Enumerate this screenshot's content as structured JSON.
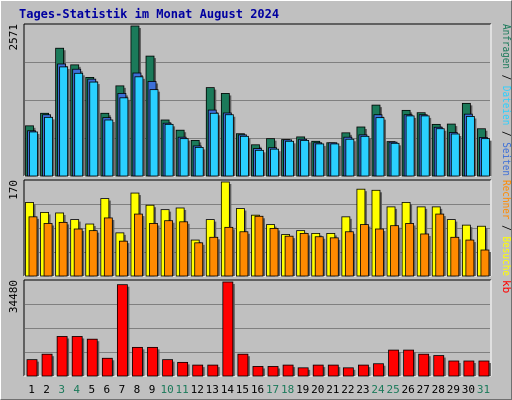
{
  "title": "Tages-Statistik im Monat August 2024",
  "colors": {
    "background": "#c0c0c0",
    "title": "#0000a0",
    "anfragen": "#1b7a5a",
    "seiten": "#3d6fd8",
    "dateien": "#2ad0ff",
    "besuche": "#ffff00",
    "rechner": "#ff8a00",
    "kb": "#ff0000",
    "weekend_label": "#1b7a5a",
    "weekday_label": "#000000"
  },
  "chart_data": [
    {
      "type": "bar",
      "panel": "top",
      "ylabel_max": "2571",
      "ylim": [
        0,
        2571
      ],
      "categories": [
        "1",
        "2",
        "3",
        "4",
        "5",
        "6",
        "7",
        "8",
        "9",
        "10",
        "11",
        "12",
        "13",
        "14",
        "15",
        "16",
        "17",
        "18",
        "19",
        "20",
        "21",
        "22",
        "23",
        "24",
        "25",
        "26",
        "27",
        "28",
        "29",
        "30",
        "31"
      ],
      "series": [
        {
          "name": "Anfragen",
          "values": [
            860,
            1075,
            2190,
            1905,
            1690,
            1075,
            1545,
            2571,
            2055,
            960,
            785,
            610,
            1515,
            1415,
            725,
            535,
            640,
            625,
            670,
            595,
            570,
            740,
            840,
            1215,
            590,
            1125,
            1085,
            885,
            890,
            1245,
            810
          ]
        },
        {
          "name": "Seiten",
          "values": [
            775,
            1050,
            1920,
            1830,
            1660,
            1000,
            1415,
            1765,
            1620,
            905,
            665,
            515,
            1130,
            1080,
            705,
            470,
            485,
            620,
            630,
            570,
            570,
            665,
            705,
            1050,
            580,
            1050,
            1050,
            835,
            745,
            1060,
            660
          ]
        },
        {
          "name": "Dateien",
          "values": [
            755,
            1005,
            1870,
            1760,
            1610,
            960,
            1340,
            1700,
            1480,
            885,
            640,
            490,
            1075,
            1050,
            680,
            440,
            460,
            595,
            610,
            550,
            550,
            630,
            680,
            1000,
            560,
            1030,
            1030,
            810,
            720,
            1020,
            640
          ]
        }
      ],
      "right_labels": [
        {
          "text": "Anfragen",
          "color_key": "anfragen"
        },
        {
          "text": "Dateien",
          "color_key": "dateien"
        },
        {
          "text": "Seiten",
          "color_key": "seiten"
        }
      ]
    },
    {
      "type": "bar",
      "panel": "middle",
      "ylabel_max": "170",
      "ylim": [
        0,
        170
      ],
      "series": [
        {
          "name": "Besuche",
          "values": [
            133,
            115,
            114,
            102,
            94,
            140,
            78,
            150,
            128,
            120,
            123,
            65,
            102,
            170,
            122,
            110,
            93,
            75,
            82,
            77,
            77,
            107,
            157,
            155,
            125,
            133,
            125,
            125,
            102,
            92,
            90
          ]
        },
        {
          "name": "Rechner",
          "values": [
            107,
            95,
            97,
            85,
            82,
            105,
            63,
            112,
            95,
            100,
            98,
            60,
            70,
            88,
            80,
            108,
            86,
            72,
            77,
            71,
            69,
            80,
            93,
            85,
            91,
            95,
            76,
            112,
            70,
            65,
            47
          ]
        }
      ],
      "right_labels": [
        {
          "text": "Rechner",
          "color_key": "rechner"
        },
        {
          "text": "Besuche",
          "color_key": "besuche"
        }
      ]
    },
    {
      "type": "bar",
      "panel": "bottom",
      "ylabel_max": "34480",
      "ylim": [
        0,
        34480
      ],
      "series": [
        {
          "name": "kb",
          "values": [
            6000,
            8000,
            14500,
            14500,
            13500,
            6500,
            33500,
            10500,
            10500,
            6000,
            5000,
            4000,
            4000,
            34480,
            8000,
            3500,
            3500,
            4000,
            3000,
            4000,
            4000,
            3000,
            4000,
            4500,
            9500,
            9500,
            8000,
            7500,
            5500,
            5500,
            5500
          ]
        }
      ],
      "right_labels": [
        {
          "text": "kb",
          "color_key": "kb"
        }
      ]
    }
  ],
  "weekend_days": [
    3,
    4,
    10,
    11,
    17,
    18,
    24,
    25,
    31
  ],
  "separator": "/"
}
